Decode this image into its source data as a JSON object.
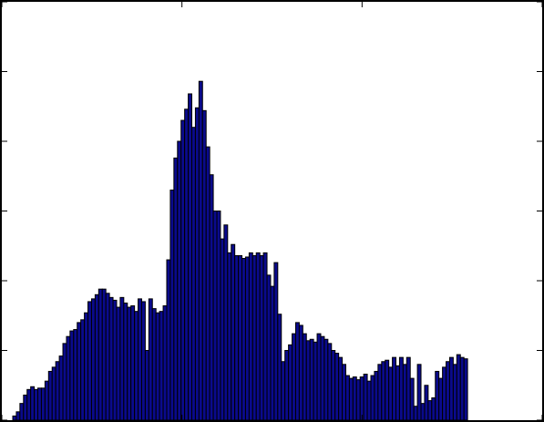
{
  "chart_data": {
    "type": "bar",
    "title": "",
    "xlabel": "",
    "ylabel": "",
    "xlim": [
      0,
      150
    ],
    "ylim": [
      0,
      300
    ],
    "grid": false,
    "tick_labels_visible": false,
    "colors": {
      "bar_fill": "#0a0a8c",
      "bar_edge": "#000000",
      "frame": "#000000",
      "background": "#ffffff"
    },
    "x": [
      1,
      2,
      3,
      4,
      5,
      6,
      7,
      8,
      9,
      10,
      11,
      12,
      13,
      14,
      15,
      16,
      17,
      18,
      19,
      20,
      21,
      22,
      23,
      24,
      25,
      26,
      27,
      28,
      29,
      30,
      31,
      32,
      33,
      34,
      35,
      36,
      37,
      38,
      39,
      40,
      41,
      42,
      43,
      44,
      45,
      46,
      47,
      48,
      49,
      50,
      51,
      52,
      53,
      54,
      55,
      56,
      57,
      58,
      59,
      60,
      61,
      62,
      63,
      64,
      65,
      66,
      67,
      68,
      69,
      70,
      71,
      72,
      73,
      74,
      75,
      76,
      77,
      78,
      79,
      80,
      81,
      82,
      83,
      84,
      85,
      86,
      87,
      88,
      89,
      90,
      91,
      92,
      93,
      94,
      95,
      96,
      97,
      98,
      99,
      100,
      101,
      102,
      103,
      104,
      105,
      106,
      107,
      108,
      109,
      110,
      111,
      112,
      113,
      114,
      115,
      116,
      117,
      118,
      119,
      120,
      121,
      122,
      123,
      124,
      125,
      126,
      127,
      128,
      129,
      130,
      131,
      132,
      133,
      134,
      135,
      136,
      137,
      138,
      139,
      140,
      141,
      142,
      143,
      144,
      145,
      146,
      147,
      148,
      149,
      150
    ],
    "values": [
      3,
      6,
      12,
      18,
      22,
      24,
      22,
      23,
      23,
      28,
      35,
      38,
      42,
      46,
      55,
      60,
      64,
      65,
      70,
      72,
      77,
      85,
      87,
      90,
      94,
      94,
      91,
      88,
      86,
      81,
      88,
      84,
      81,
      82,
      78,
      87,
      85,
      50,
      87,
      80,
      77,
      78,
      82,
      115,
      165,
      188,
      200,
      215,
      223,
      234,
      210,
      224,
      243,
      222,
      196,
      176,
      150,
      150,
      130,
      140,
      120,
      126,
      118,
      118,
      116,
      117,
      120,
      118,
      120,
      118,
      120,
      104,
      96,
      113,
      76,
      42,
      50,
      54,
      62,
      70,
      68,
      62,
      57,
      58,
      56,
      62,
      60,
      58,
      55,
      50,
      48,
      45,
      40,
      32,
      30,
      31,
      29,
      31,
      33,
      28,
      32,
      35,
      40,
      42,
      43,
      38,
      45,
      39,
      45,
      40,
      45,
      30,
      10,
      40,
      12,
      25,
      14,
      16,
      35,
      30,
      38,
      42,
      45,
      40,
      47,
      45,
      44,
      40,
      30,
      27,
      28,
      26,
      25,
      28,
      26,
      30,
      27,
      25,
      31,
      34,
      38,
      39,
      36,
      40,
      44,
      40,
      30,
      28,
      25,
      0
    ],
    "bins": 150
  }
}
